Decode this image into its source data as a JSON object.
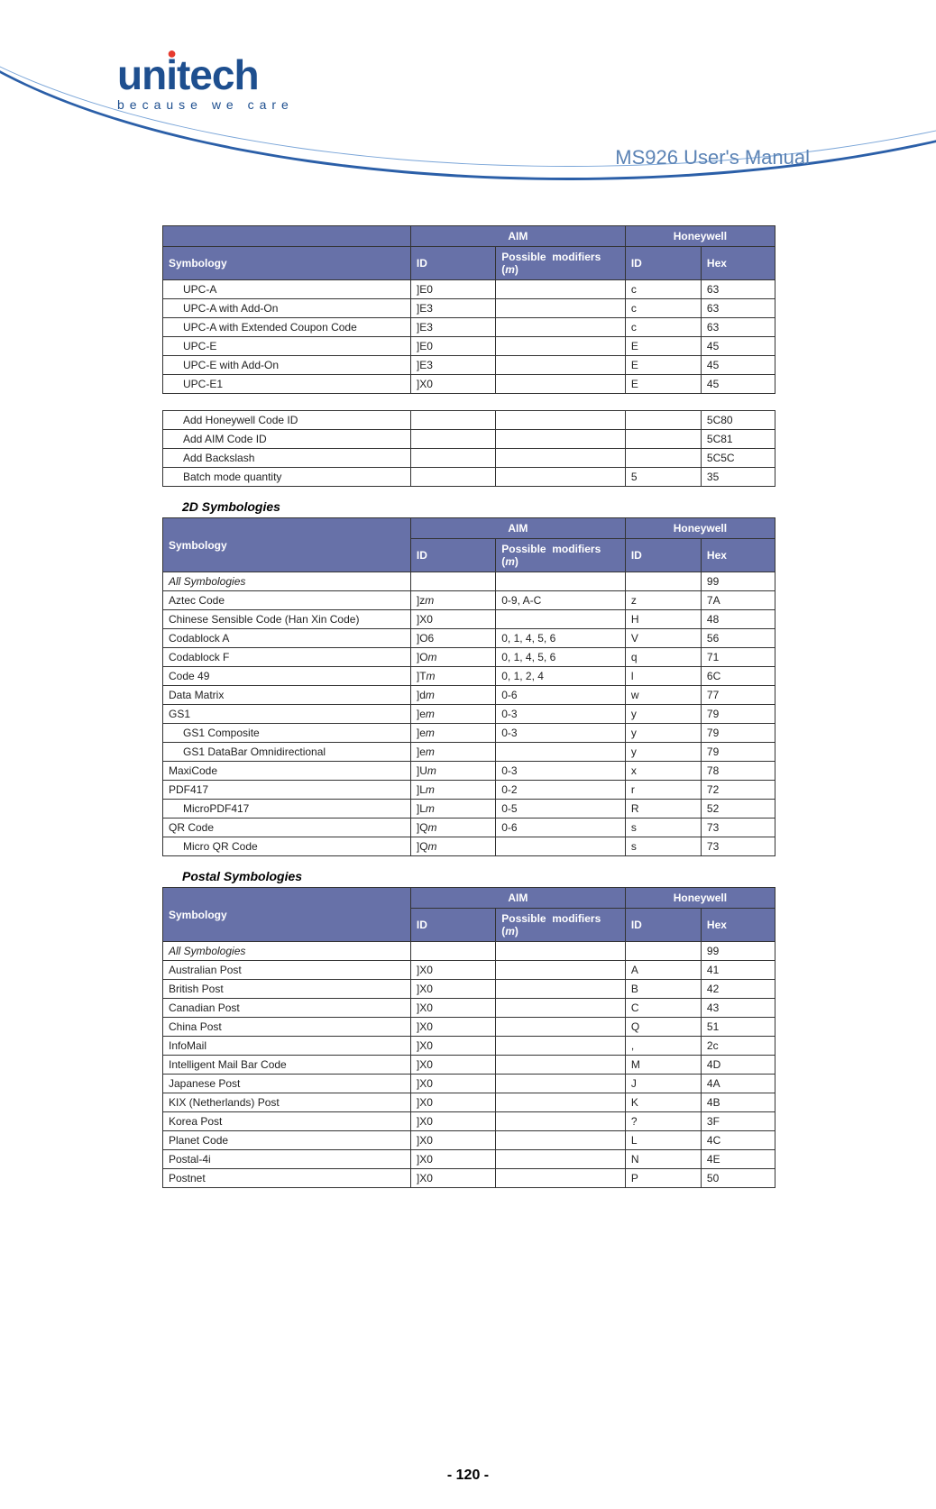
{
  "header": {
    "brand_main": "unitech",
    "brand_tagline": "because we care",
    "doc_title": "MS926 User's Manual",
    "page_number": "- 120 -"
  },
  "colors": {
    "header_bg": "#6771a8",
    "header_fg": "#ffffff",
    "border": "#333333",
    "title_color": "#5b83b5",
    "brand_color": "#1e4f8f",
    "dot_color": "#e63a2e"
  },
  "table1": {
    "top_headers": [
      "",
      "AIM",
      "Honeywell"
    ],
    "sub_headers": [
      "Symbology",
      "ID",
      "Possible  modifiers (m)",
      "ID",
      "Hex"
    ],
    "rows": [
      {
        "sym": "UPC-A",
        "indent": 1,
        "aid": "]E0",
        "mod": "",
        "hid": "c",
        "hex": "63"
      },
      {
        "sym": "UPC-A with Add-On",
        "indent": 1,
        "aid": "]E3",
        "mod": "",
        "hid": "c",
        "hex": "63"
      },
      {
        "sym": "UPC-A with Extended Coupon Code",
        "indent": 1,
        "aid": "]E3",
        "mod": "",
        "hid": "c",
        "hex": "63"
      },
      {
        "sym": "UPC-E",
        "indent": 1,
        "aid": "]E0",
        "mod": "",
        "hid": "E",
        "hex": "45"
      },
      {
        "sym": "UPC-E with Add-On",
        "indent": 1,
        "aid": "]E3",
        "mod": "",
        "hid": "E",
        "hex": "45"
      },
      {
        "sym": "UPC-E1",
        "indent": 1,
        "aid": "]X0",
        "mod": "",
        "hid": "E",
        "hex": "45"
      }
    ]
  },
  "table1b": {
    "rows": [
      {
        "sym": "Add Honeywell Code ID",
        "indent": 1,
        "aid": "",
        "mod": "",
        "hid": "",
        "hex": "5C80"
      },
      {
        "sym": "Add AIM Code ID",
        "indent": 1,
        "aid": "",
        "mod": "",
        "hid": "",
        "hex": "5C81"
      },
      {
        "sym": "Add Backslash",
        "indent": 1,
        "aid": "",
        "mod": "",
        "hid": "",
        "hex": "5C5C"
      },
      {
        "sym": "Batch mode quantity",
        "indent": 1,
        "aid": "",
        "mod": "",
        "hid": "5",
        "hex": "35"
      }
    ]
  },
  "section2_title": "2D Symbologies",
  "table2": {
    "top_headers": [
      "",
      "AIM",
      "Honeywell"
    ],
    "sub_headers": [
      "Symbology",
      "ID",
      "Possible  modifiers (m)",
      "ID",
      "Hex"
    ],
    "rows": [
      {
        "sym": "All Symbologies",
        "indent": 0,
        "italic": true,
        "aid": "",
        "mod": "",
        "hid": "",
        "hex": "99"
      },
      {
        "sym": "Aztec Code",
        "indent": 0,
        "aid": "]zm",
        "aid_italic_last": true,
        "mod": "0-9, A-C",
        "hid": "z",
        "hex": "7A"
      },
      {
        "sym": "Chinese Sensible Code (Han Xin Code)",
        "indent": 0,
        "aid": "]X0",
        "mod": "",
        "hid": "H",
        "hex": "48"
      },
      {
        "sym": "Codablock A",
        "indent": 0,
        "aid": "]O6",
        "mod": "0, 1, 4, 5, 6",
        "hid": "V",
        "hex": "56"
      },
      {
        "sym": "Codablock F",
        "indent": 0,
        "aid": "]Om",
        "aid_italic_last": true,
        "mod": "0, 1, 4, 5, 6",
        "hid": "q",
        "hex": "71"
      },
      {
        "sym": "Code 49",
        "indent": 0,
        "aid": "]Tm",
        "aid_italic_last": true,
        "mod": "0, 1, 2, 4",
        "hid": "l",
        "hex": "6C"
      },
      {
        "sym": "Data Matrix",
        "indent": 0,
        "aid": "]dm",
        "aid_italic_last": true,
        "mod": "0-6",
        "hid": "w",
        "hex": "77"
      },
      {
        "sym": "GS1",
        "indent": 0,
        "aid": "]em",
        "aid_italic_last": true,
        "mod": "0-3",
        "hid": "y",
        "hex": "79"
      },
      {
        "sym": "GS1 Composite",
        "indent": 1,
        "aid": "]em",
        "aid_italic_last": true,
        "mod": "0-3",
        "hid": "y",
        "hex": "79"
      },
      {
        "sym": "GS1 DataBar Omnidirectional",
        "indent": 1,
        "aid": "]em",
        "aid_italic_last": true,
        "mod": "",
        "hid": "y",
        "hex": "79"
      },
      {
        "sym": "MaxiCode",
        "indent": 0,
        "aid": "]Um",
        "aid_italic_last": true,
        "mod": "0-3",
        "hid": "x",
        "hex": "78"
      },
      {
        "sym": "PDF417",
        "indent": 0,
        "aid": "]Lm",
        "aid_italic_last": true,
        "mod": "0-2",
        "hid": "r",
        "hex": "72"
      },
      {
        "sym": "MicroPDF417",
        "indent": 1,
        "aid": "]Lm",
        "aid_italic_last": true,
        "mod": "0-5",
        "hid": "R",
        "hex": "52"
      },
      {
        "sym": "QR Code",
        "indent": 0,
        "aid": "]Qm",
        "aid_italic_last": true,
        "mod": "0-6",
        "hid": "s",
        "hex": "73"
      },
      {
        "sym": "Micro QR Code",
        "indent": 1,
        "aid": "]Qm",
        "aid_italic_last": true,
        "mod": "",
        "hid": "s",
        "hex": "73"
      }
    ]
  },
  "section3_title": "Postal Symbologies",
  "table3": {
    "top_headers": [
      "",
      "AIM",
      "Honeywell"
    ],
    "sub_headers": [
      "Symbology",
      "ID",
      "Possible  modifiers (m)",
      "ID",
      "Hex"
    ],
    "rows": [
      {
        "sym": "All Symbologies",
        "indent": 0,
        "italic": true,
        "aid": "",
        "mod": "",
        "hid": "",
        "hex": "99"
      },
      {
        "sym": "Australian Post",
        "indent": 0,
        "aid": "]X0",
        "mod": "",
        "hid": "A",
        "hex": "41"
      },
      {
        "sym": "British Post",
        "indent": 0,
        "aid": "]X0",
        "mod": "",
        "hid": "B",
        "hex": "42"
      },
      {
        "sym": "Canadian Post",
        "indent": 0,
        "aid": "]X0",
        "mod": "",
        "hid": "C",
        "hex": "43"
      },
      {
        "sym": "China Post",
        "indent": 0,
        "aid": "]X0",
        "mod": "",
        "hid": "Q",
        "hex": "51"
      },
      {
        "sym": "InfoMail",
        "indent": 0,
        "aid": "]X0",
        "mod": "",
        "hid": ",",
        "hex": "2c"
      },
      {
        "sym": "Intelligent Mail Bar Code",
        "indent": 0,
        "aid": "]X0",
        "mod": "",
        "hid": "M",
        "hex": "4D"
      },
      {
        "sym": "Japanese Post",
        "indent": 0,
        "aid": "]X0",
        "mod": "",
        "hid": "J",
        "hex": "4A"
      },
      {
        "sym": "KIX (Netherlands) Post",
        "indent": 0,
        "aid": "]X0",
        "mod": "",
        "hid": "K",
        "hex": "4B"
      },
      {
        "sym": "Korea Post",
        "indent": 0,
        "aid": "]X0",
        "mod": "",
        "hid": "?",
        "hex": "3F"
      },
      {
        "sym": "Planet Code",
        "indent": 0,
        "aid": "]X0",
        "mod": "",
        "hid": "L",
        "hex": "4C"
      },
      {
        "sym": "Postal-4i",
        "indent": 0,
        "aid": "]X0",
        "mod": "",
        "hid": "N",
        "hex": "4E"
      },
      {
        "sym": "Postnet",
        "indent": 0,
        "aid": "]X0",
        "mod": "",
        "hid": "P",
        "hex": "50"
      }
    ]
  }
}
